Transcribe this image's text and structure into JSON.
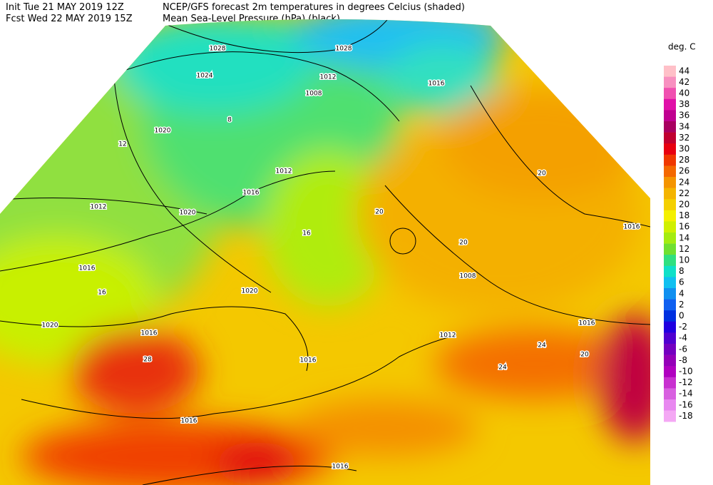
{
  "header": {
    "init": "Init  Tue 21 MAY 2019 12Z",
    "fcst": "Fcst Wed 22 MAY 2019 15Z",
    "title": "NCEP/GFS forecast 2m temperatures in degrees Celcius (shaded)",
    "subtitle": "Mean Sea-Level Pressure (hPa) (black)."
  },
  "legend": {
    "title": "deg. C",
    "items": [
      {
        "label": "44",
        "color": "#ffc0c8"
      },
      {
        "label": "42",
        "color": "#f890c0"
      },
      {
        "label": "40",
        "color": "#f050b0"
      },
      {
        "label": "38",
        "color": "#e010a8"
      },
      {
        "label": "36",
        "color": "#c00090"
      },
      {
        "label": "34",
        "color": "#a80060"
      },
      {
        "label": "32",
        "color": "#c00030"
      },
      {
        "label": "30",
        "color": "#e80010"
      },
      {
        "label": "28",
        "color": "#f03800"
      },
      {
        "label": "26",
        "color": "#f46800"
      },
      {
        "label": "24",
        "color": "#f49400"
      },
      {
        "label": "22",
        "color": "#f4b400"
      },
      {
        "label": "20",
        "color": "#f4d000"
      },
      {
        "label": "18",
        "color": "#f4f000"
      },
      {
        "label": "16",
        "color": "#d0f000"
      },
      {
        "label": "14",
        "color": "#a4ec10"
      },
      {
        "label": "12",
        "color": "#70e030"
      },
      {
        "label": "10",
        "color": "#30e080"
      },
      {
        "label": "8",
        "color": "#10e0c8"
      },
      {
        "label": "6",
        "color": "#10c0f0"
      },
      {
        "label": "4",
        "color": "#1090f0"
      },
      {
        "label": "2",
        "color": "#1060f0"
      },
      {
        "label": "0",
        "color": "#0030e0"
      },
      {
        "label": "-2",
        "color": "#2000e0"
      },
      {
        "label": "-4",
        "color": "#5000d0"
      },
      {
        "label": "-6",
        "color": "#7400c0"
      },
      {
        "label": "-8",
        "color": "#9400b8"
      },
      {
        "label": "-10",
        "color": "#b000c0"
      },
      {
        "label": "-12",
        "color": "#c830d0"
      },
      {
        "label": "-14",
        "color": "#d860e0"
      },
      {
        "label": "-16",
        "color": "#e888f0"
      },
      {
        "label": "-18",
        "color": "#f4a8f4"
      }
    ]
  },
  "isobar_labels": [
    "1028",
    "1024",
    "1020",
    "1012",
    "1020",
    "1016",
    "1020",
    "1020",
    "1016",
    "1016",
    "1016",
    "1016",
    "1012",
    "1016",
    "1008",
    "1012",
    "1028",
    "1016",
    "1008",
    "1012",
    "1016",
    "1016"
  ],
  "temperature_labels": [
    "8",
    "12",
    "20",
    "20",
    "24",
    "28",
    "16",
    "20",
    "24",
    "16",
    "20"
  ]
}
